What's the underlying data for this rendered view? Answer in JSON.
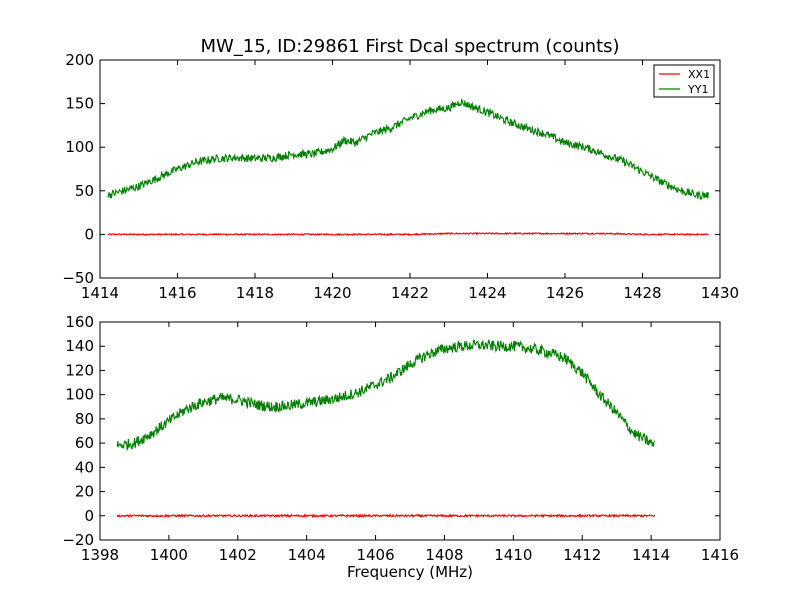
{
  "title": "MW_15, ID:29861 First Dcal spectrum (counts)",
  "chart_data": [
    {
      "type": "line",
      "xlim": [
        1414,
        1430
      ],
      "ylim": [
        -50,
        200
      ],
      "xticks": [
        1414,
        1416,
        1418,
        1420,
        1422,
        1424,
        1426,
        1428,
        1430
      ],
      "yticks": [
        -50,
        0,
        50,
        100,
        150,
        200
      ],
      "xlabel": "",
      "ylabel": "",
      "grid": false,
      "legend": {
        "placement": "top-right",
        "entries": [
          {
            "name": "XX1",
            "color": "#ff0000"
          },
          {
            "name": "YY1",
            "color": "#008000"
          }
        ]
      },
      "series": [
        {
          "name": "XX1",
          "color": "#ff0000",
          "x": [
            1414.2,
            1415,
            1416,
            1417,
            1418,
            1419,
            1420,
            1421,
            1422,
            1423,
            1424,
            1425,
            1426,
            1427,
            1428,
            1429,
            1429.7
          ],
          "y": [
            0,
            0,
            0,
            0,
            0,
            0,
            0,
            0,
            0,
            1,
            1,
            1,
            1,
            1,
            0,
            0,
            0
          ]
        },
        {
          "name": "YY1",
          "color": "#008000",
          "x": [
            1414.2,
            1414.6,
            1415,
            1415.5,
            1416,
            1416.5,
            1417,
            1417.5,
            1418,
            1418.5,
            1419,
            1419.5,
            1420,
            1420.3,
            1420.6,
            1421,
            1421.5,
            1422,
            1422.5,
            1423,
            1423.3,
            1423.7,
            1424,
            1424.5,
            1425,
            1425.5,
            1426,
            1426.5,
            1427,
            1427.5,
            1428,
            1428.5,
            1429,
            1429.4,
            1429.7
          ],
          "y": [
            45,
            50,
            55,
            65,
            75,
            83,
            87,
            88,
            87,
            88,
            92,
            92,
            98,
            108,
            105,
            115,
            122,
            133,
            142,
            145,
            152,
            145,
            140,
            130,
            122,
            115,
            105,
            100,
            92,
            84,
            72,
            60,
            50,
            45,
            45
          ]
        }
      ]
    },
    {
      "type": "line",
      "xlim": [
        1398,
        1416
      ],
      "ylim": [
        -20,
        160
      ],
      "xticks": [
        1398,
        1400,
        1402,
        1404,
        1406,
        1408,
        1410,
        1412,
        1414,
        1416
      ],
      "yticks": [
        -20,
        0,
        20,
        40,
        60,
        80,
        100,
        120,
        140,
        160
      ],
      "xlabel": "Frequency (MHz)",
      "ylabel": "",
      "grid": false,
      "series": [
        {
          "name": "XX1",
          "color": "#ff0000",
          "x": [
            1398.5,
            1400,
            1402,
            1404,
            1406,
            1408,
            1410,
            1412,
            1414.1
          ],
          "y": [
            0,
            0,
            0,
            0,
            0,
            0,
            0,
            0,
            0
          ]
        },
        {
          "name": "YY1",
          "color": "#008000",
          "x": [
            1398.5,
            1399,
            1399.5,
            1400,
            1400.5,
            1401,
            1401.5,
            1402,
            1402.5,
            1403,
            1403.5,
            1404,
            1404.5,
            1405,
            1405.5,
            1406,
            1406.5,
            1407,
            1407.5,
            1408,
            1408.5,
            1409,
            1409.5,
            1410,
            1410.5,
            1411,
            1411.5,
            1412,
            1412.5,
            1413,
            1413.5,
            1414,
            1414.1
          ],
          "y": [
            58,
            60,
            68,
            78,
            88,
            94,
            97,
            96,
            92,
            90,
            91,
            93,
            95,
            98,
            102,
            108,
            115,
            125,
            133,
            138,
            140,
            141,
            140,
            140,
            138,
            135,
            130,
            118,
            100,
            85,
            68,
            60,
            58
          ]
        }
      ]
    }
  ]
}
